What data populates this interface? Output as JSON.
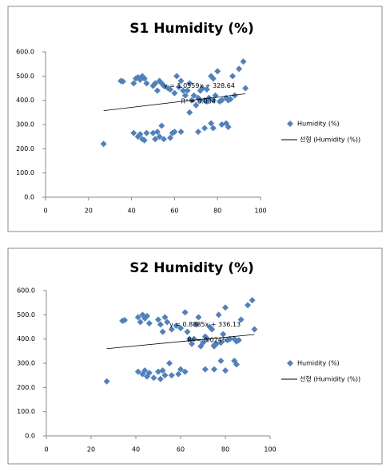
{
  "chart_data": [
    {
      "type": "scatter",
      "title": "S1 Humidity (%)",
      "color": "#4f81bd",
      "xlim": [
        0,
        100
      ],
      "xticks": [
        0,
        20,
        40,
        60,
        80,
        100
      ],
      "ylim": [
        0,
        600
      ],
      "yticks": [
        {
          "value": 0,
          "label": "0.0"
        },
        {
          "value": 100,
          "label": "100.0"
        },
        {
          "value": 200,
          "label": "200.0"
        },
        {
          "value": 300,
          "label": "300.0"
        },
        {
          "value": 400,
          "label": "400.0"
        },
        {
          "value": 500,
          "label": "500.0"
        },
        {
          "value": 600,
          "label": "600.0"
        }
      ],
      "grid": false,
      "series": [
        {
          "name": "Humidity (%)",
          "color": "#4f81bd",
          "x": [
            35,
            36,
            41,
            42,
            43,
            44,
            45,
            46,
            47,
            50,
            51,
            52,
            53,
            54,
            55,
            57,
            58,
            60,
            61,
            62,
            63,
            64,
            65,
            66,
            67,
            67,
            68,
            69,
            70,
            71,
            72,
            73,
            74,
            75,
            76,
            77,
            78,
            79,
            80,
            81,
            82,
            84,
            85,
            86,
            87,
            88,
            90,
            92,
            93,
            72,
            75,
            78,
            27,
            41,
            43,
            44,
            45,
            46,
            47,
            50,
            51,
            52,
            53,
            54,
            55,
            58,
            59,
            60,
            63,
            71,
            74,
            77,
            78,
            82,
            84,
            85
          ],
          "values": [
            480,
            478,
            470,
            490,
            495,
            485,
            500,
            490,
            470,
            460,
            470,
            440,
            480,
            470,
            460,
            450,
            445,
            430,
            500,
            455,
            480,
            440,
            420,
            440,
            470,
            350,
            400,
            420,
            380,
            410,
            400,
            450,
            400,
            395,
            410,
            500,
            400,
            420,
            520,
            395,
            400,
            410,
            400,
            405,
            500,
            420,
            530,
            560,
            450,
            440,
            445,
            490,
            220,
            265,
            250,
            260,
            240,
            235,
            265,
            265,
            240,
            270,
            250,
            295,
            240,
            245,
            265,
            270,
            270,
            270,
            285,
            305,
            285,
            300,
            305,
            290
          ]
        }
      ],
      "trendline": {
        "name": "선형 (Humidity (%))",
        "slope": 1.0559,
        "intercept": 328.64,
        "x": [
          27,
          93
        ],
        "equation": "y = 1.0559x + 328.64",
        "r2": "R² = 0.034"
      }
    },
    {
      "type": "scatter",
      "title": "S2 Humidity (%)",
      "color": "#4f81bd",
      "xlim": [
        0,
        100
      ],
      "xticks": [
        0,
        20,
        40,
        60,
        80,
        100
      ],
      "ylim": [
        0,
        600
      ],
      "yticks": [
        {
          "value": 0,
          "label": "0.0"
        },
        {
          "value": 100,
          "label": "100.0"
        },
        {
          "value": 200,
          "label": "200.0"
        },
        {
          "value": 300,
          "label": "300.0"
        },
        {
          "value": 400,
          "label": "400.0"
        },
        {
          "value": 500,
          "label": "500.0"
        },
        {
          "value": 600,
          "label": "600.0"
        }
      ],
      "grid": false,
      "series": [
        {
          "name": "Humidity (%)",
          "color": "#4f81bd",
          "x": [
            34,
            35,
            41,
            42,
            43,
            44,
            45,
            46,
            50,
            51,
            52,
            53,
            54,
            56,
            58,
            60,
            62,
            63,
            64,
            66,
            67,
            68,
            69,
            70,
            71,
            72,
            73,
            74,
            75,
            76,
            77,
            78,
            79,
            80,
            81,
            82,
            84,
            85,
            86,
            87,
            90,
            92,
            93,
            65,
            75,
            27,
            41,
            43,
            44,
            45,
            46,
            48,
            50,
            51,
            52,
            53,
            55,
            56,
            59,
            60,
            62,
            71,
            75,
            78,
            80,
            84,
            85
          ],
          "values": [
            475,
            478,
            490,
            470,
            500,
            485,
            495,
            465,
            480,
            460,
            430,
            490,
            470,
            440,
            455,
            445,
            510,
            430,
            400,
            400,
            460,
            490,
            370,
            385,
            410,
            400,
            450,
            440,
            370,
            380,
            500,
            385,
            420,
            530,
            395,
            400,
            400,
            390,
            395,
            480,
            540,
            560,
            440,
            380,
            375,
            225,
            265,
            255,
            270,
            245,
            260,
            240,
            265,
            235,
            270,
            250,
            300,
            250,
            255,
            275,
            265,
            275,
            275,
            310,
            270,
            310,
            295
          ]
        }
      ],
      "trendline": {
        "name": "선형 (Humidity (%))",
        "slope": 0.8885,
        "intercept": 336.13,
        "x": [
          27,
          93
        ],
        "equation": "y = 0.8885x + 336.13",
        "r2": "R² = 0.0246"
      }
    }
  ]
}
